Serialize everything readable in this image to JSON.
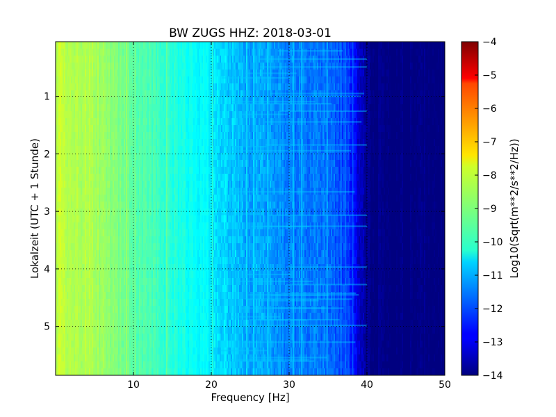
{
  "chart_data": {
    "type": "heatmap",
    "title": "BW ZUGS HHZ: 2018-03-01",
    "xlabel": "Frequency [Hz]",
    "ylabel": "Lokalzeit (UTC + 1 Stunde)",
    "xlim": [
      0,
      50
    ],
    "ylim": [
      5.85,
      0.05
    ],
    "x_ticks": [
      10,
      20,
      30,
      40,
      50
    ],
    "x_tick_labels": [
      "10",
      "20",
      "30",
      "40",
      "50"
    ],
    "y_ticks": [
      1,
      2,
      3,
      4,
      5
    ],
    "y_tick_labels": [
      "1",
      "2",
      "3",
      "4",
      "5"
    ],
    "grid": true,
    "colorscale": "jet",
    "colorbar": {
      "label": "Log10(Sqrt(m**2/s**2/Hz))",
      "range": [
        -14,
        -4
      ],
      "ticks": [
        -4,
        -5,
        -6,
        -7,
        -8,
        -9,
        -10,
        -11,
        -12,
        -13,
        -14
      ],
      "tick_labels": [
        "−4",
        "−5",
        "−6",
        "−7",
        "−8",
        "−9",
        "−10",
        "−11",
        "−12",
        "−13",
        "−14"
      ]
    },
    "frequency_profile": {
      "frequency_hz": [
        0,
        5,
        10,
        15,
        20,
        25,
        30,
        35,
        37,
        38,
        39,
        40,
        45,
        50
      ],
      "log_amplitude": [
        -8.3,
        -8.6,
        -9.3,
        -9.9,
        -10.4,
        -11.0,
        -11.4,
        -11.6,
        -12.0,
        -12.4,
        -13.2,
        -13.9,
        -14.0,
        -14.0
      ]
    }
  }
}
